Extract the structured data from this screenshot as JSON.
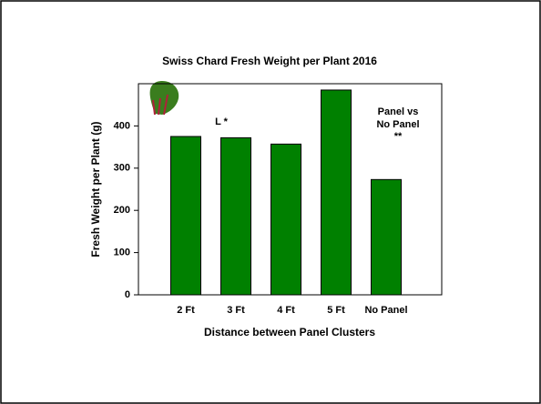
{
  "chart_data": {
    "type": "bar",
    "title": "Swiss Chard Fresh Weight per Plant 2016",
    "x_label": "Distance between Panel Clusters",
    "y_label": "Fresh Weight per Plant (g)",
    "categories": [
      "2 Ft",
      "3 Ft",
      "4 Ft",
      "5 Ft",
      "No Panel"
    ],
    "values": [
      375,
      372,
      357,
      485,
      273
    ],
    "color": "#008000",
    "ylim": [
      0,
      500
    ],
    "yticks": [
      0,
      100,
      200,
      300,
      400
    ],
    "grid": false,
    "annotations": [
      "L  *",
      "Panel vs",
      "No Panel",
      "**"
    ]
  }
}
